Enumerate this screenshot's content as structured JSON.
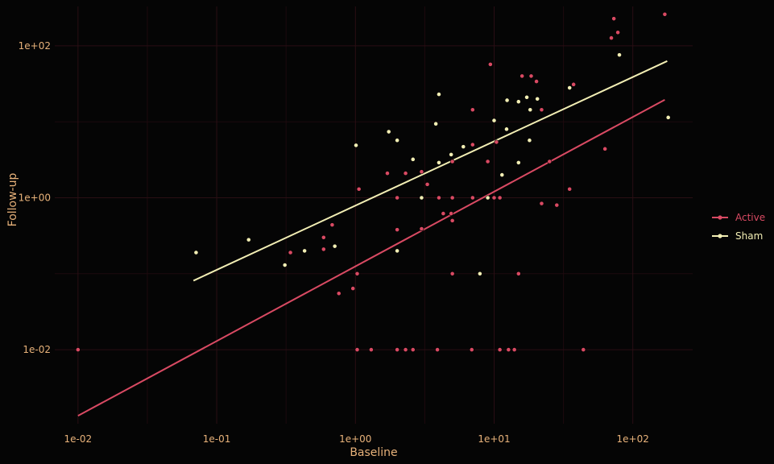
{
  "chart_data": {
    "type": "scatter",
    "xlabel": "Baseline",
    "ylabel": "Follow-up",
    "x_scale": "log10",
    "y_scale": "log10",
    "xlim": [
      0.0068,
      270
    ],
    "ylim": [
      0.00106,
      330
    ],
    "x_ticks": [
      {
        "value": 0.01,
        "label": "1e-02"
      },
      {
        "value": 0.1,
        "label": "1e-01"
      },
      {
        "value": 1,
        "label": "1e+00"
      },
      {
        "value": 10,
        "label": "1e+01"
      },
      {
        "value": 100,
        "label": "1e+02"
      }
    ],
    "y_ticks": [
      {
        "value": 0.01,
        "label": "1e-02"
      },
      {
        "value": 1,
        "label": "1e+00"
      },
      {
        "value": 100,
        "label": "1e+02"
      }
    ],
    "grid": true,
    "legend": {
      "position": "right"
    },
    "series": [
      {
        "name": "Active",
        "color": "#d94a63",
        "points": [
          [
            0.01,
            0.01
          ],
          [
            0.34,
            0.19
          ],
          [
            0.59,
            0.3
          ],
          [
            0.59,
            0.21
          ],
          [
            0.68,
            0.44
          ],
          [
            0.76,
            0.055
          ],
          [
            0.96,
            0.064
          ],
          [
            1.03,
            0.1
          ],
          [
            1.03,
            0.01
          ],
          [
            1.06,
            1.3
          ],
          [
            1.3,
            0.01
          ],
          [
            1.7,
            2.1
          ],
          [
            2.0,
            1.0
          ],
          [
            2.0,
            0.38
          ],
          [
            2.0,
            0.01
          ],
          [
            2.3,
            0.01
          ],
          [
            2.3,
            2.1
          ],
          [
            2.6,
            0.01
          ],
          [
            3.0,
            0.39
          ],
          [
            3.0,
            2.2
          ],
          [
            3.3,
            1.5
          ],
          [
            3.9,
            0.01
          ],
          [
            4.0,
            1.0
          ],
          [
            4.3,
            0.62
          ],
          [
            4.9,
            0.62
          ],
          [
            5.0,
            1.0
          ],
          [
            5.0,
            0.5
          ],
          [
            5.0,
            0.1
          ],
          [
            5.0,
            3.0
          ],
          [
            6.9,
            0.01
          ],
          [
            7.0,
            1.0
          ],
          [
            7.0,
            5.0
          ],
          [
            7.0,
            14.4
          ],
          [
            9.0,
            3.0
          ],
          [
            9.4,
            57.0
          ],
          [
            10.0,
            1.0
          ],
          [
            10.4,
            5.4
          ],
          [
            11.0,
            0.01
          ],
          [
            11.0,
            1.0
          ],
          [
            12.7,
            0.01
          ],
          [
            14.0,
            0.01
          ],
          [
            15.0,
            0.1
          ],
          [
            15.9,
            40.0
          ],
          [
            18.5,
            40.0
          ],
          [
            20.2,
            34.0
          ],
          [
            22.0,
            0.84
          ],
          [
            22.0,
            14.4
          ],
          [
            25.1,
            3.0
          ],
          [
            28.3,
            0.8
          ],
          [
            35.0,
            1.3
          ],
          [
            37.4,
            31.0
          ],
          [
            44.0,
            0.01
          ],
          [
            63.0,
            4.4
          ],
          [
            70.0,
            127.0
          ],
          [
            73.0,
            228.0
          ],
          [
            78.0,
            150.0
          ],
          [
            170.0,
            260.0
          ]
        ],
        "trend": [
          [
            0.01,
            0.00135
          ],
          [
            170.0,
            19.5
          ]
        ]
      },
      {
        "name": "Sham",
        "color": "#f2eeb4",
        "points": [
          [
            0.071,
            0.19
          ],
          [
            0.17,
            0.28
          ],
          [
            0.31,
            0.13
          ],
          [
            0.43,
            0.2
          ],
          [
            0.71,
            0.23
          ],
          [
            1.01,
            4.9
          ],
          [
            1.74,
            7.4
          ],
          [
            2.0,
            5.7
          ],
          [
            2.0,
            0.2
          ],
          [
            2.6,
            3.2
          ],
          [
            3.0,
            1.0
          ],
          [
            3.8,
            9.4
          ],
          [
            4.0,
            23.0
          ],
          [
            4.0,
            2.9
          ],
          [
            4.9,
            3.7
          ],
          [
            6.0,
            4.7
          ],
          [
            7.9,
            0.1
          ],
          [
            9.0,
            1.0
          ],
          [
            10.0,
            10.4
          ],
          [
            11.4,
            2.0
          ],
          [
            12.3,
            8.0
          ],
          [
            12.4,
            19.2
          ],
          [
            15.0,
            18.4
          ],
          [
            15.0,
            2.9
          ],
          [
            17.2,
            21.0
          ],
          [
            18.0,
            5.7
          ],
          [
            18.2,
            14.4
          ],
          [
            20.5,
            20.0
          ],
          [
            35.0,
            28.0
          ],
          [
            80.0,
            76.0
          ],
          [
            180.0,
            11.4
          ]
        ],
        "trend": [
          [
            0.068,
            0.081
          ],
          [
            177.0,
            63.0
          ]
        ]
      }
    ]
  }
}
